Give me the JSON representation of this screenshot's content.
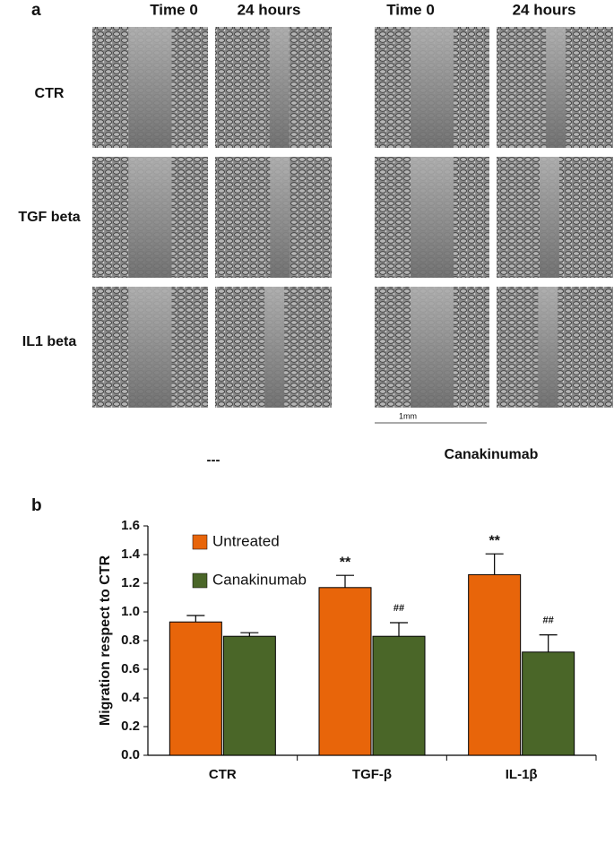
{
  "panel_a": {
    "label": "a",
    "column_headers": [
      "Time 0",
      "24 hours",
      "Time 0",
      "24 hours"
    ],
    "row_labels": [
      "CTR",
      "TGF beta",
      "IL1 beta"
    ],
    "scale_bar": "1mm",
    "group_labels": [
      "---",
      "Canakinumab"
    ]
  },
  "chart_data": {
    "type": "bar",
    "panel_label": "b",
    "ylabel": "Migration respect to CTR",
    "categories": [
      "CTR",
      "TGF-β",
      "IL-1β"
    ],
    "series": [
      {
        "name": "Untreated",
        "color": "#e8650a",
        "values": [
          0.93,
          1.17,
          1.26
        ],
        "errors": [
          0.045,
          0.085,
          0.145
        ],
        "markers": [
          null,
          "**",
          "**"
        ]
      },
      {
        "name": "Canakinumab",
        "color": "#4a6628",
        "values": [
          0.83,
          0.83,
          0.72
        ],
        "errors": [
          0.025,
          0.095,
          0.12
        ],
        "markers": [
          null,
          "##",
          "##"
        ]
      }
    ],
    "ylim": [
      0,
      1.6
    ],
    "yticks": [
      {
        "value": 0,
        "label": "0.0"
      },
      0.2,
      0.4,
      0.6,
      0.8,
      {
        "value": 1,
        "label": "1.0"
      },
      1.2,
      1.4,
      1.6
    ],
    "legend": "upper left"
  }
}
